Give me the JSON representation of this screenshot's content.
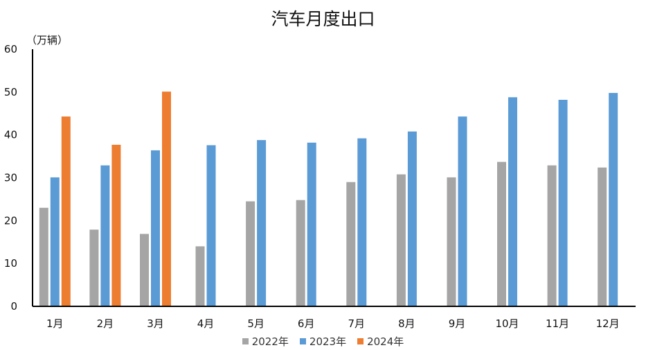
{
  "chart_data": {
    "type": "bar",
    "title": "汽车月度出口",
    "ylabel": "（万辆）",
    "xlabel": "",
    "ylim": [
      0,
      60
    ],
    "yticks": [
      0,
      10,
      20,
      30,
      40,
      50,
      60
    ],
    "grid": false,
    "legend_position": "bottom",
    "categories": [
      "1月",
      "2月",
      "3月",
      "4月",
      "5月",
      "6月",
      "7月",
      "8月",
      "9月",
      "10月",
      "11月",
      "12月"
    ],
    "series": [
      {
        "name": "2022年",
        "color": "#a5a5a5",
        "values": [
          23.0,
          17.9,
          16.9,
          14.0,
          24.5,
          24.8,
          29.0,
          30.8,
          30.1,
          33.7,
          32.9,
          32.4
        ]
      },
      {
        "name": "2023年",
        "color": "#5b9bd5",
        "values": [
          30.1,
          32.9,
          36.4,
          37.6,
          38.8,
          38.2,
          39.2,
          40.8,
          44.3,
          48.8,
          48.2,
          49.8
        ]
      },
      {
        "name": "2024年",
        "color": "#ed7d31",
        "values": [
          44.3,
          37.7,
          50.1,
          null,
          null,
          null,
          null,
          null,
          null,
          null,
          null,
          null
        ]
      }
    ]
  }
}
